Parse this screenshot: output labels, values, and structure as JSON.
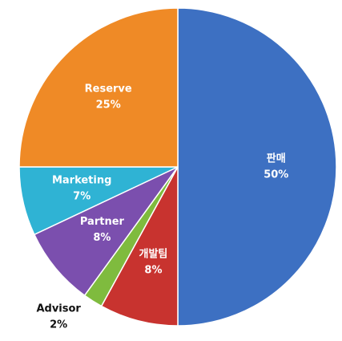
{
  "chart_data": {
    "type": "pie",
    "categories": [
      "판매",
      "개발팀",
      "Advisor",
      "Partner",
      "Marketing",
      "Reserve"
    ],
    "values": [
      50,
      8,
      2,
      8,
      7,
      25
    ],
    "value_labels": [
      "50%",
      "8%",
      "2%",
      "8%",
      "7%",
      "25%"
    ],
    "colors": [
      "#3d70c2",
      "#c8332f",
      "#7fbb3e",
      "#7b4fae",
      "#2fb3d4",
      "#ef8a26"
    ]
  }
}
